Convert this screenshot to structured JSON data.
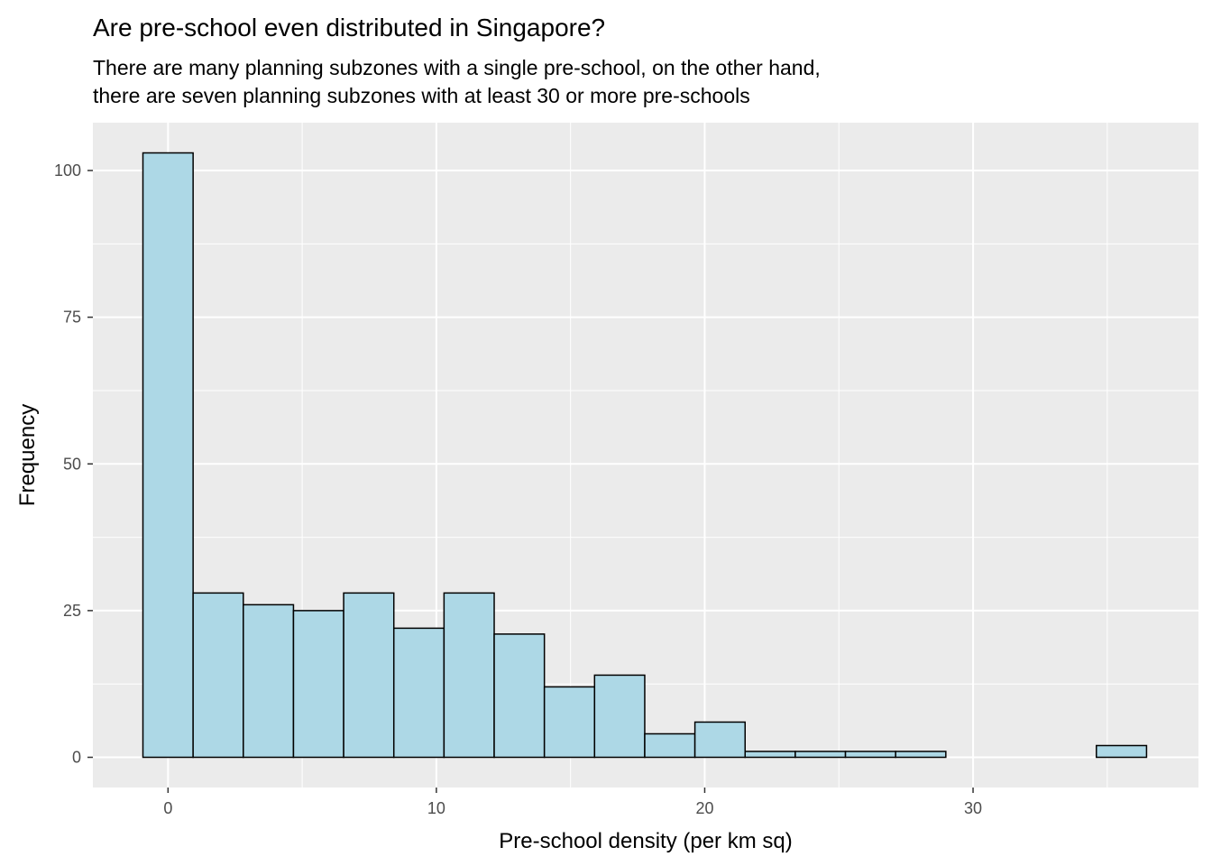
{
  "chart_data": {
    "type": "bar",
    "title": "Are pre-school even distributed in Singapore?",
    "subtitle": [
      "There are many planning subzones with a single pre-school, on the other hand,",
      "there are seven planning subzones with at least 30 or more pre-schools"
    ],
    "xlabel": "Pre-school density (per km sq)",
    "ylabel": "Frequency",
    "xlim": [
      -2.8,
      38.4
    ],
    "ylim": [
      -5.15,
      108.15
    ],
    "x_ticks": [
      0,
      10,
      20,
      30
    ],
    "y_ticks": [
      0,
      25,
      50,
      75,
      100
    ],
    "bin_width": 1.87,
    "bin_centers": [
      0,
      1.87,
      3.74,
      5.61,
      7.48,
      9.35,
      11.22,
      13.09,
      14.96,
      16.83,
      18.7,
      20.57,
      22.44,
      24.31,
      26.18,
      28.05,
      29.92,
      31.79,
      33.66,
      35.53
    ],
    "values": [
      103,
      28,
      26,
      25,
      28,
      22,
      28,
      21,
      12,
      14,
      4,
      6,
      1,
      1,
      1,
      1,
      0,
      0,
      0,
      2
    ],
    "grid": true,
    "colors": {
      "bar_fill": "#ADD8E6",
      "bar_outline": "#000000",
      "panel_background": "#EBEBEB",
      "grid_major": "#FFFFFF",
      "tick_label": "#4D4D4D"
    }
  }
}
